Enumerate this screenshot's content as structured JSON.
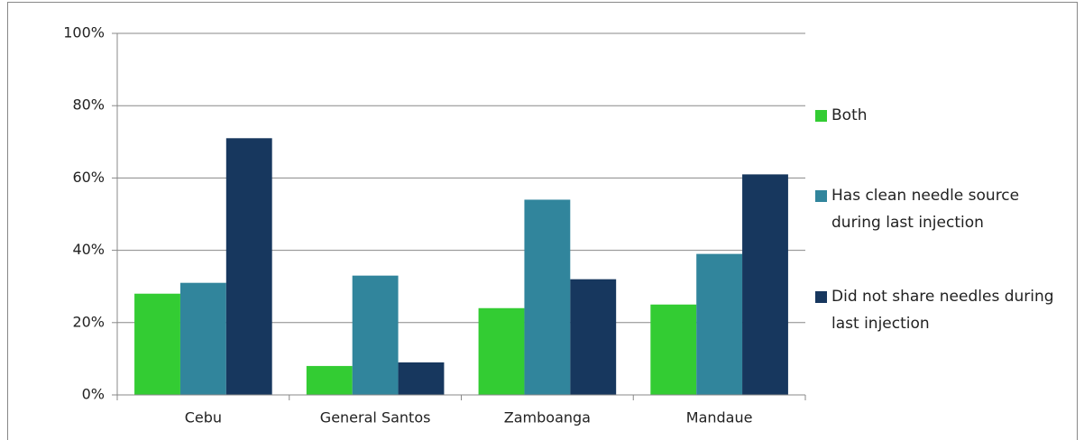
{
  "chart_data": {
    "type": "bar",
    "categories": [
      "Cebu",
      "General Santos",
      "Zamboanga",
      "Mandaue"
    ],
    "series": [
      {
        "name": "Both",
        "color": "#33cc33",
        "values": [
          28,
          8,
          24,
          25
        ]
      },
      {
        "name": "Has clean needle source during last injection",
        "color": "#31859c",
        "values": [
          31,
          33,
          54,
          39
        ]
      },
      {
        "name": "Did not share needles during last injection",
        "color": "#17375e",
        "values": [
          71,
          9,
          32,
          61
        ]
      }
    ],
    "ylim": [
      0,
      100
    ],
    "yticks": [
      {
        "value": 0,
        "label": "0%"
      },
      {
        "value": 20,
        "label": "20%"
      },
      {
        "value": 40,
        "label": "40%"
      },
      {
        "value": 60,
        "label": "60%"
      },
      {
        "value": 80,
        "label": "80%"
      },
      {
        "value": 100,
        "label": "100%"
      }
    ],
    "grid": true,
    "legend": "right"
  }
}
